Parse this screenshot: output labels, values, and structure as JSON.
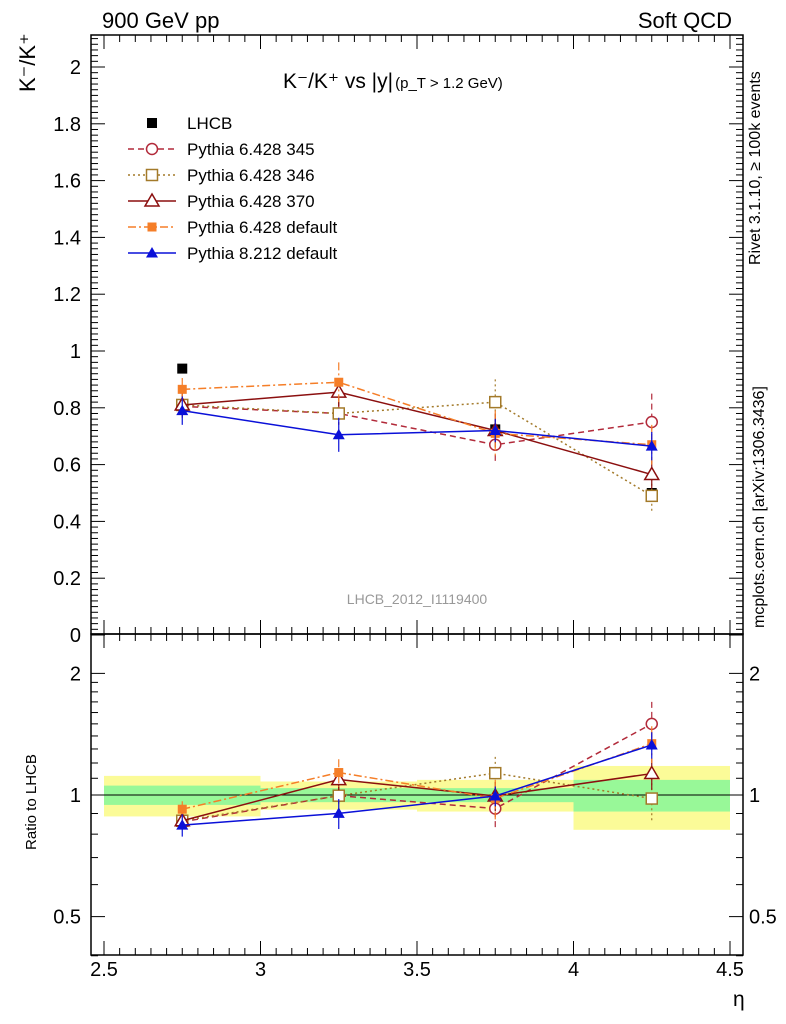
{
  "header": {
    "left_title": "900 GeV pp",
    "right_title": "Soft QCD"
  },
  "side_notes": {
    "rivet": "Rivet 3.1.10, ≥ 100k events",
    "mcplots": "mcplots.cern.ch [arXiv:1306.3436]"
  },
  "chart_data": {
    "type": "scatter",
    "title_main": "K⁻/K⁺ vs |y|",
    "title_sub": "(p_T > 1.2 GeV)",
    "ylabel": "K⁻/K⁺",
    "ratio_ylabel": "Ratio to LHCB",
    "xlabel": "η",
    "analysis_id": "LHCB_2012_I1119400",
    "x_ticks": [
      "2.5",
      "3",
      "3.5",
      "4",
      "4.5"
    ],
    "y_ticks": [
      "0",
      "0.2",
      "0.4",
      "0.6",
      "0.8",
      "1",
      "1.2",
      "1.4",
      "1.6",
      "1.8",
      "2"
    ],
    "ratio_ticks": [
      "0.5",
      "1",
      "2"
    ],
    "xlim": [
      2.5,
      4.5
    ],
    "ylim": [
      0,
      2.12
    ],
    "ratio_ylim": [
      0.38,
      2.5
    ],
    "x": [
      2.75,
      3.25,
      3.75,
      4.25
    ],
    "bins": [
      [
        2.5,
        3.0
      ],
      [
        3.0,
        3.5
      ],
      [
        3.5,
        4.0
      ],
      [
        4.0,
        4.5
      ]
    ],
    "data": {
      "name": "LHCB",
      "values": [
        0.938,
        0.783,
        0.724,
        0.5
      ],
      "stat_ratio": [
        0.055,
        0.04,
        0.04,
        0.09
      ],
      "total_ratio": [
        0.115,
        0.08,
        0.09,
        0.18
      ]
    },
    "series": [
      {
        "name": "Pythia 6.428 345",
        "values": [
          0.805,
          0.78,
          0.67,
          0.75
        ],
        "errors": [
          0.04,
          0.04,
          0.07,
          0.1
        ]
      },
      {
        "name": "Pythia 6.428 346",
        "values": [
          0.81,
          0.78,
          0.82,
          0.49
        ],
        "errors": [
          0.04,
          0.04,
          0.08,
          0.06
        ]
      },
      {
        "name": "Pythia 6.428 370",
        "values": [
          0.81,
          0.855,
          0.72,
          0.565
        ],
        "errors": [
          0.04,
          0.05,
          0.06,
          0.05
        ]
      },
      {
        "name": "Pythia 6.428 default",
        "values": [
          0.865,
          0.89,
          0.71,
          0.67
        ],
        "errors": [
          0.04,
          0.07,
          0.08,
          0.07
        ]
      },
      {
        "name": "Pythia 8.212 default",
        "values": [
          0.79,
          0.705,
          0.72,
          0.665
        ],
        "errors": [
          0.05,
          0.06,
          0.04,
          0.05
        ]
      }
    ],
    "colors": {
      "data": "#000000",
      "s345": "#b22a3a",
      "s346": "#a37a2a",
      "s370": "#8b0f0f",
      "sdef6": "#f57e28",
      "sdef8": "#0a10d8",
      "band_stat": "#98f898",
      "band_total": "#fbfb98",
      "axis_label": "#000000",
      "side_note": "#888888"
    }
  }
}
